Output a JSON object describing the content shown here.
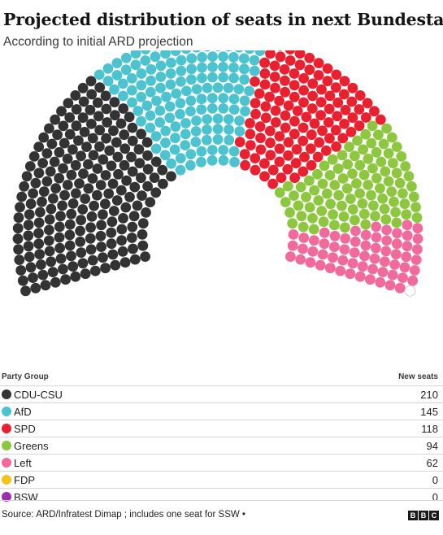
{
  "header": {
    "title": "Projected distribution of seats in next Bundestag",
    "subtitle": "According to initial ARD projection"
  },
  "legend": {
    "party_header": "Party Group",
    "seats_header": "New seats"
  },
  "chart_data": {
    "type": "hemicycle",
    "total_seats": 630,
    "parties": [
      {
        "name": "CDU-CSU",
        "seats": 210,
        "color": "#333333"
      },
      {
        "name": "AfD",
        "seats": 145,
        "color": "#4cc3cf"
      },
      {
        "name": "SPD",
        "seats": 118,
        "color": "#e8202f"
      },
      {
        "name": "Greens",
        "seats": 94,
        "color": "#8dc63f"
      },
      {
        "name": "Left",
        "seats": 62,
        "color": "#f06a9b"
      },
      {
        "name": "FDP",
        "seats": 0,
        "color": "#f2c318"
      },
      {
        "name": "BSW",
        "seats": 0,
        "color": "#9b2fae"
      }
    ],
    "unassigned_seats": 1,
    "unassigned_color": "#ffffff"
  },
  "footer": {
    "source": "Source: ARD/Infratest Dimap ; includes one seat for SSW •",
    "logo": [
      "B",
      "B",
      "C"
    ]
  }
}
